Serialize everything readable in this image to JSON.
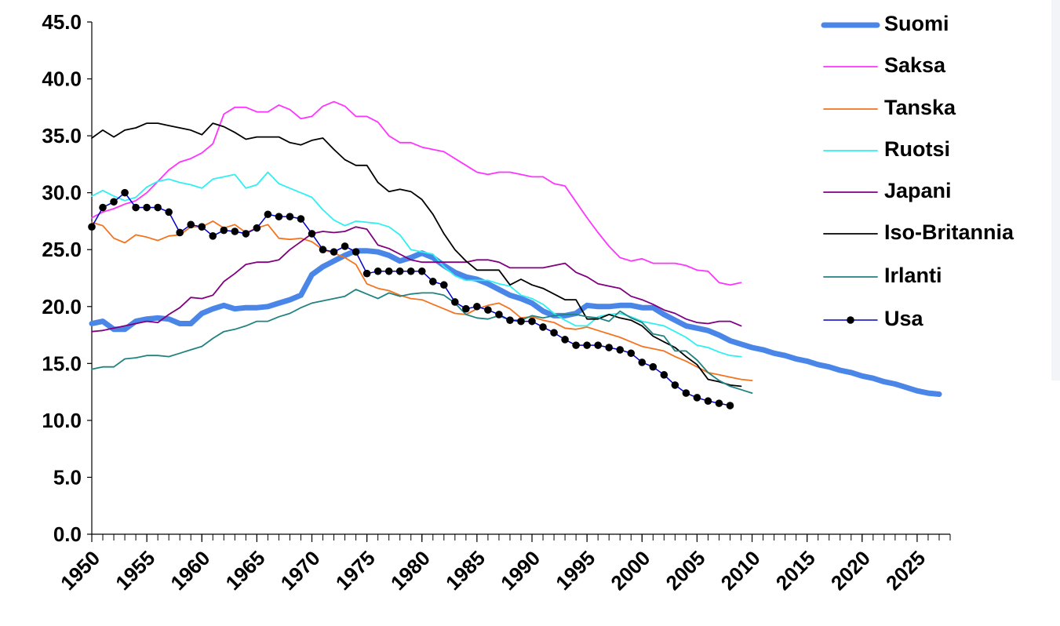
{
  "chart_data": {
    "type": "line",
    "x": [
      1950,
      1951,
      1952,
      1953,
      1954,
      1955,
      1956,
      1957,
      1958,
      1959,
      1960,
      1961,
      1962,
      1963,
      1964,
      1965,
      1966,
      1967,
      1968,
      1969,
      1970,
      1971,
      1972,
      1973,
      1974,
      1975,
      1976,
      1977,
      1978,
      1979,
      1980,
      1981,
      1982,
      1983,
      1984,
      1985,
      1986,
      1987,
      1988,
      1989,
      1990,
      1991,
      1992,
      1993,
      1994,
      1995,
      1996,
      1997,
      1998,
      1999,
      2000,
      2001,
      2002,
      2003,
      2004,
      2005,
      2006,
      2007,
      2008,
      2009,
      2010,
      2011,
      2012,
      2013,
      2014,
      2015,
      2016,
      2017,
      2018,
      2019,
      2020,
      2021,
      2022,
      2023,
      2024,
      2025,
      2026,
      2027
    ],
    "xlim": [
      1950,
      2028
    ],
    "xticks": [
      1950,
      1955,
      1960,
      1965,
      1970,
      1975,
      1980,
      1985,
      1990,
      1995,
      2000,
      2005,
      2010,
      2015,
      2020,
      2025
    ],
    "ylim": [
      0,
      45
    ],
    "yticks": [
      {
        "value": 0,
        "label": "0.0"
      },
      {
        "value": 5,
        "label": "5.0"
      },
      {
        "value": 10,
        "label": "10.0"
      },
      {
        "value": 15,
        "label": "15.0"
      },
      {
        "value": 20,
        "label": "20.0"
      },
      {
        "value": 25,
        "label": "25.0"
      },
      {
        "value": 30,
        "label": "30.0"
      },
      {
        "value": 35,
        "label": "35.0"
      },
      {
        "value": 40,
        "label": "40.0"
      },
      {
        "value": 45,
        "label": "45.0"
      }
    ],
    "legend": "right",
    "series": [
      {
        "name": "Suomi",
        "color": "#4a86e8",
        "linewidth": 7,
        "values": [
          18.5,
          18.7,
          18.0,
          18.0,
          18.7,
          18.9,
          19.0,
          18.9,
          18.5,
          18.5,
          19.4,
          19.8,
          20.1,
          19.8,
          19.9,
          19.9,
          20.0,
          20.3,
          20.6,
          21.0,
          22.8,
          23.5,
          24.0,
          24.5,
          24.9,
          24.9,
          24.8,
          24.5,
          24.0,
          24.3,
          24.7,
          24.3,
          23.6,
          23.0,
          22.6,
          22.4,
          22.0,
          21.5,
          21.0,
          20.7,
          20.3,
          19.6,
          19.2,
          19.2,
          19.4,
          20.1,
          20.0,
          20.0,
          20.1,
          20.1,
          19.9,
          19.9,
          19.3,
          18.8,
          18.3,
          18.1,
          17.9,
          17.5,
          17.0,
          16.7,
          16.4,
          16.2,
          15.9,
          15.7,
          15.4,
          15.2,
          14.9,
          14.7,
          14.4,
          14.2,
          13.9,
          13.7,
          13.4,
          13.2,
          12.9,
          12.6,
          12.4,
          12.3
        ]
      },
      {
        "name": "Saksa",
        "color": "#ff33ff",
        "linewidth": 1.8,
        "values": [
          27.8,
          28.3,
          28.6,
          29.0,
          29.3,
          30.0,
          31.0,
          32.0,
          32.7,
          33.0,
          33.5,
          34.3,
          36.9,
          37.5,
          37.5,
          37.1,
          37.1,
          37.7,
          37.3,
          36.5,
          36.7,
          37.6,
          38.0,
          37.6,
          36.7,
          36.7,
          36.2,
          35.0,
          34.4,
          34.4,
          34.0,
          33.8,
          33.6,
          33.0,
          32.4,
          31.8,
          31.6,
          31.8,
          31.8,
          31.6,
          31.4,
          31.4,
          30.8,
          30.6,
          29.2,
          27.8,
          26.5,
          25.3,
          24.3,
          24.0,
          24.2,
          23.8,
          23.8,
          23.8,
          23.6,
          23.2,
          23.1,
          22.1,
          21.9,
          22.1,
          null,
          null,
          null,
          null,
          null,
          null,
          null,
          null,
          null,
          null,
          null,
          null,
          null,
          null,
          null,
          null,
          null,
          null
        ]
      },
      {
        "name": "Tanska",
        "color": "#f4731f",
        "linewidth": 1.8,
        "values": [
          27.4,
          27.1,
          26.0,
          25.6,
          26.3,
          26.1,
          25.8,
          26.2,
          26.3,
          27.0,
          27.0,
          27.5,
          26.9,
          27.2,
          26.5,
          26.9,
          27.2,
          26.0,
          25.9,
          26.0,
          25.7,
          25.0,
          24.7,
          24.3,
          23.7,
          22.0,
          21.6,
          21.4,
          21.0,
          20.7,
          20.6,
          20.2,
          19.8,
          19.4,
          19.3,
          19.8,
          20.1,
          20.3,
          19.8,
          19.0,
          19.1,
          18.8,
          18.6,
          18.1,
          18.0,
          18.2,
          17.9,
          17.6,
          17.3,
          16.9,
          16.5,
          16.3,
          16.1,
          15.6,
          15.2,
          14.7,
          14.2,
          14.0,
          13.8,
          13.6,
          13.5,
          null,
          null,
          null,
          null,
          null,
          null,
          null,
          null,
          null,
          null,
          null,
          null,
          null,
          null,
          null,
          null,
          null
        ]
      },
      {
        "name": "Ruotsi",
        "color": "#2ef0f0",
        "linewidth": 1.8,
        "values": [
          29.7,
          30.2,
          29.7,
          29.3,
          29.6,
          30.5,
          31.0,
          31.2,
          30.9,
          30.7,
          30.4,
          31.2,
          31.4,
          31.6,
          30.4,
          30.7,
          31.8,
          30.8,
          30.4,
          30.0,
          29.6,
          28.5,
          27.6,
          27.1,
          27.5,
          27.4,
          27.3,
          27.0,
          26.3,
          25.0,
          24.8,
          24.6,
          23.5,
          22.7,
          22.3,
          22.3,
          22.3,
          22.0,
          21.8,
          21.0,
          20.7,
          20.2,
          19.4,
          18.8,
          18.3,
          18.3,
          19.1,
          19.3,
          19.4,
          19.1,
          18.7,
          18.5,
          18.3,
          17.8,
          17.3,
          16.6,
          16.4,
          16.0,
          15.7,
          15.6,
          null,
          null,
          null,
          null,
          null,
          null,
          null,
          null,
          null,
          null,
          null,
          null,
          null,
          null,
          null,
          null,
          null,
          null
        ]
      },
      {
        "name": "Japani",
        "color": "#800080",
        "linewidth": 1.8,
        "values": [
          17.8,
          17.9,
          18.1,
          18.3,
          18.5,
          18.7,
          18.6,
          19.3,
          19.9,
          20.8,
          20.7,
          21.0,
          22.2,
          22.9,
          23.7,
          23.9,
          23.9,
          24.1,
          25.0,
          25.7,
          26.4,
          26.6,
          26.5,
          26.6,
          27.0,
          26.8,
          25.4,
          25.1,
          24.6,
          24.1,
          23.9,
          23.9,
          23.9,
          23.9,
          23.9,
          24.1,
          24.1,
          23.9,
          23.4,
          23.4,
          23.4,
          23.4,
          23.6,
          23.8,
          23.0,
          22.6,
          22.0,
          21.8,
          21.6,
          20.9,
          20.6,
          20.2,
          19.7,
          19.4,
          18.9,
          18.6,
          18.5,
          18.7,
          18.7,
          18.3,
          null,
          null,
          null,
          null,
          null,
          null,
          null,
          null,
          null,
          null,
          null,
          null,
          null,
          null,
          null,
          null,
          null,
          null
        ]
      },
      {
        "name": "Iso-Britannia",
        "color": "#000000",
        "linewidth": 1.8,
        "values": [
          34.8,
          35.5,
          34.9,
          35.5,
          35.7,
          36.1,
          36.1,
          35.9,
          35.7,
          35.5,
          35.1,
          36.1,
          35.8,
          35.3,
          34.7,
          34.9,
          34.9,
          34.9,
          34.4,
          34.2,
          34.6,
          34.8,
          33.8,
          32.9,
          32.4,
          32.4,
          30.9,
          30.1,
          30.3,
          30.1,
          29.4,
          28.1,
          26.4,
          25.0,
          24.0,
          23.2,
          23.2,
          23.2,
          21.9,
          22.4,
          21.9,
          21.6,
          21.1,
          20.6,
          20.6,
          18.9,
          18.9,
          19.3,
          19.0,
          18.8,
          18.3,
          17.4,
          16.9,
          16.4,
          15.6,
          14.9,
          13.6,
          13.4,
          13.1,
          13.0,
          null,
          null,
          null,
          null,
          null,
          null,
          null,
          null,
          null,
          null,
          null,
          null,
          null,
          null,
          null,
          null,
          null,
          null
        ]
      },
      {
        "name": "Irlanti",
        "color": "#218282",
        "linewidth": 1.8,
        "values": [
          14.5,
          14.7,
          14.7,
          15.4,
          15.5,
          15.7,
          15.7,
          15.6,
          15.9,
          16.2,
          16.5,
          17.2,
          17.8,
          18.0,
          18.3,
          18.7,
          18.7,
          19.1,
          19.4,
          19.9,
          20.3,
          20.5,
          20.7,
          20.9,
          21.5,
          21.1,
          20.7,
          21.2,
          20.9,
          21.1,
          21.2,
          21.2,
          21.0,
          20.3,
          19.3,
          19.0,
          18.9,
          19.2,
          18.8,
          18.8,
          19.2,
          19.0,
          19.2,
          19.3,
          19.3,
          19.1,
          19.0,
          18.7,
          19.6,
          19.0,
          18.6,
          17.6,
          17.4,
          16.1,
          16.1,
          15.3,
          14.2,
          13.5,
          13.0,
          12.7,
          12.4,
          null,
          null,
          null,
          null,
          null,
          null,
          null,
          null,
          null,
          null,
          null,
          null,
          null,
          null,
          null,
          null,
          null
        ]
      },
      {
        "name": "Usa",
        "color": "#0000cc",
        "linewidth": 1.5,
        "marker": "circle",
        "marker_color": "#000000",
        "values": [
          27.0,
          28.7,
          29.2,
          30.0,
          28.7,
          28.7,
          28.7,
          28.3,
          26.5,
          27.2,
          27.0,
          26.2,
          26.7,
          26.6,
          26.4,
          26.9,
          28.1,
          27.9,
          27.9,
          27.7,
          26.4,
          25.0,
          24.8,
          25.3,
          24.8,
          22.9,
          23.1,
          23.1,
          23.1,
          23.1,
          23.1,
          22.2,
          21.9,
          20.4,
          19.8,
          20.0,
          19.7,
          19.3,
          18.8,
          18.7,
          18.7,
          18.2,
          17.7,
          17.1,
          16.6,
          16.6,
          16.6,
          16.4,
          16.2,
          15.9,
          15.1,
          14.7,
          14.0,
          13.1,
          12.4,
          12.0,
          11.7,
          11.5,
          11.3,
          null,
          null,
          null,
          null,
          null,
          null,
          null,
          null,
          null,
          null,
          null,
          null,
          null,
          null,
          null,
          null,
          null,
          null,
          null
        ]
      }
    ]
  }
}
